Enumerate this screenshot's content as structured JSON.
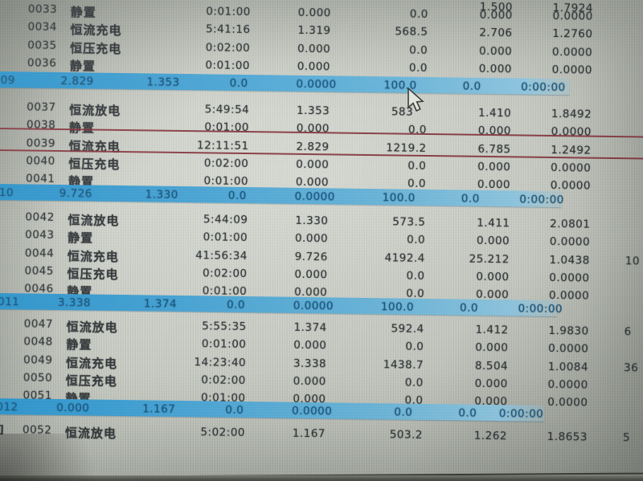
{
  "colors": {
    "background": "#c6cac1",
    "text": "#2f3336",
    "cycle_row_highlight": "#3a9fd4",
    "cycle_row_text": "#17557e",
    "marquee_red": "#84303a"
  },
  "cursor": {
    "icon": "arrow-cursor"
  },
  "table": {
    "partial_top_row": {
      "energy": "1.500",
      "voltage": "1.7924"
    },
    "rows": [
      {
        "kind": "step",
        "marker": "]",
        "no": "0033",
        "name": "静置",
        "time": "0:01:00",
        "current": "0.000",
        "capacity": "0.0",
        "energy": "0.000",
        "voltage": "0.0000",
        "extra": ""
      },
      {
        "kind": "step",
        "marker": "]",
        "no": "0034",
        "name": "恒流充电",
        "time": "5:41:16",
        "current": "1.319",
        "capacity": "568.5",
        "energy": "2.706",
        "voltage": "1.2760",
        "extra": ""
      },
      {
        "kind": "step",
        "marker": "]",
        "no": "0035",
        "name": "恒压充电",
        "time": "0:02:00",
        "current": "0.000",
        "capacity": "0.0",
        "energy": "0.000",
        "voltage": "0.0000",
        "extra": ""
      },
      {
        "kind": "step",
        "marker": "]",
        "no": "0036",
        "name": "静置",
        "time": "0:01:00",
        "current": "0.000",
        "capacity": "0.0",
        "energy": "0.000",
        "voltage": "0.0000",
        "extra": ""
      },
      {
        "kind": "cycle",
        "label": "09",
        "values": [
          "2.829",
          "1.353",
          "0.0",
          "0.0000",
          "100.0",
          "0.0",
          "0:00:00"
        ]
      },
      {
        "kind": "step",
        "marker": "]",
        "no": "0037",
        "name": "恒流放电",
        "time": "5:49:54",
        "current": "1.353",
        "capacity": "583",
        "energy": "1.410",
        "voltage": "1.8492",
        "extra": "",
        "cursor": true
      },
      {
        "kind": "step",
        "marker": "]",
        "no": "0038",
        "name": "静置",
        "time": "0:01:00",
        "current": "0.000",
        "capacity": "0.0",
        "energy": "0.000",
        "voltage": "0.0000",
        "extra": ""
      },
      {
        "kind": "step",
        "marker": "]",
        "no": "0039",
        "name": "恒流充电",
        "time": "12:11:51",
        "current": "2.829",
        "capacity": "1219.2",
        "energy": "6.785",
        "voltage": "1.2492",
        "extra": "",
        "marquee": true
      },
      {
        "kind": "step",
        "marker": "]",
        "no": "0040",
        "name": "恒压充电",
        "time": "0:02:00",
        "current": "0.000",
        "capacity": "0.0",
        "energy": "0.000",
        "voltage": "0.0000",
        "extra": ""
      },
      {
        "kind": "step",
        "marker": "]",
        "no": "0041",
        "name": "静置",
        "time": "0:01:00",
        "current": "0.000",
        "capacity": "0.0",
        "energy": "0.000",
        "voltage": "0.0000",
        "extra": ""
      },
      {
        "kind": "cycle",
        "label": "10",
        "values": [
          "9.726",
          "1.330",
          "0.0",
          "0.0000",
          "100.0",
          "0.0",
          "0:00:00"
        ]
      },
      {
        "kind": "step",
        "marker": "]",
        "no": "0042",
        "name": "恒流放电",
        "time": "5:44:09",
        "current": "1.330",
        "capacity": "573.5",
        "energy": "1.411",
        "voltage": "2.0801",
        "extra": ""
      },
      {
        "kind": "step",
        "marker": "]",
        "no": "0043",
        "name": "静置",
        "time": "0:01:00",
        "current": "0.000",
        "capacity": "0.0",
        "energy": "0.000",
        "voltage": "0.0000",
        "extra": ""
      },
      {
        "kind": "step",
        "marker": "]",
        "no": "0044",
        "name": "恒流充电",
        "time": "41:56:34",
        "current": "9.726",
        "capacity": "4192.4",
        "energy": "25.212",
        "voltage": "1.0438",
        "extra": "10"
      },
      {
        "kind": "step",
        "marker": "]",
        "no": "0045",
        "name": "恒压充电",
        "time": "0:02:00",
        "current": "0.000",
        "capacity": "0.0",
        "energy": "0.000",
        "voltage": "0.0000",
        "extra": ""
      },
      {
        "kind": "step",
        "marker": "]",
        "no": "0046",
        "name": "静置",
        "time": "0:01:00",
        "current": "0.000",
        "capacity": "0.0",
        "energy": "0.000",
        "voltage": "0.0000",
        "extra": ""
      },
      {
        "kind": "cycle",
        "label": "011",
        "values": [
          "3.338",
          "1.374",
          "0.0",
          "0.0000",
          "100.0",
          "0.0",
          "0:00:00"
        ]
      },
      {
        "kind": "step",
        "marker": "]",
        "no": "0047",
        "name": "恒流放电",
        "time": "5:55:35",
        "current": "1.374",
        "capacity": "592.4",
        "energy": "1.412",
        "voltage": "1.9830",
        "extra": "6"
      },
      {
        "kind": "step",
        "marker": "-]",
        "no": "0048",
        "name": "静置",
        "time": "0:01:00",
        "current": "0.000",
        "capacity": "0.0",
        "energy": "0.000",
        "voltage": "0.0000",
        "extra": ""
      },
      {
        "kind": "step",
        "marker": "-]",
        "no": "0049",
        "name": "恒流充电",
        "time": "14:23:40",
        "current": "3.338",
        "capacity": "1438.7",
        "energy": "8.504",
        "voltage": "1.0084",
        "extra": "36"
      },
      {
        "kind": "step",
        "marker": "]",
        "no": "0050",
        "name": "恒压充电",
        "time": "0:02:00",
        "current": "0.000",
        "capacity": "0.0",
        "energy": "0.000",
        "voltage": "0.0000",
        "extra": ""
      },
      {
        "kind": "step",
        "marker": "-]",
        "no": "0051",
        "name": "静置",
        "time": "0:01:00",
        "current": "0.000",
        "capacity": "0.0",
        "energy": "0.000",
        "voltage": "0.0000",
        "extra": ""
      },
      {
        "kind": "cycle",
        "label": "012",
        "values": [
          "0.000",
          "1.167",
          "0.0",
          "0.0000",
          "0.0",
          "0.0",
          "0:00:00"
        ]
      },
      {
        "kind": "step",
        "marker": "+]",
        "no": "0052",
        "name": "恒流放电",
        "time": "5:02:00",
        "current": "1.167",
        "capacity": "503.2",
        "energy": "1.262",
        "voltage": "1.8653",
        "extra": "5"
      }
    ]
  }
}
